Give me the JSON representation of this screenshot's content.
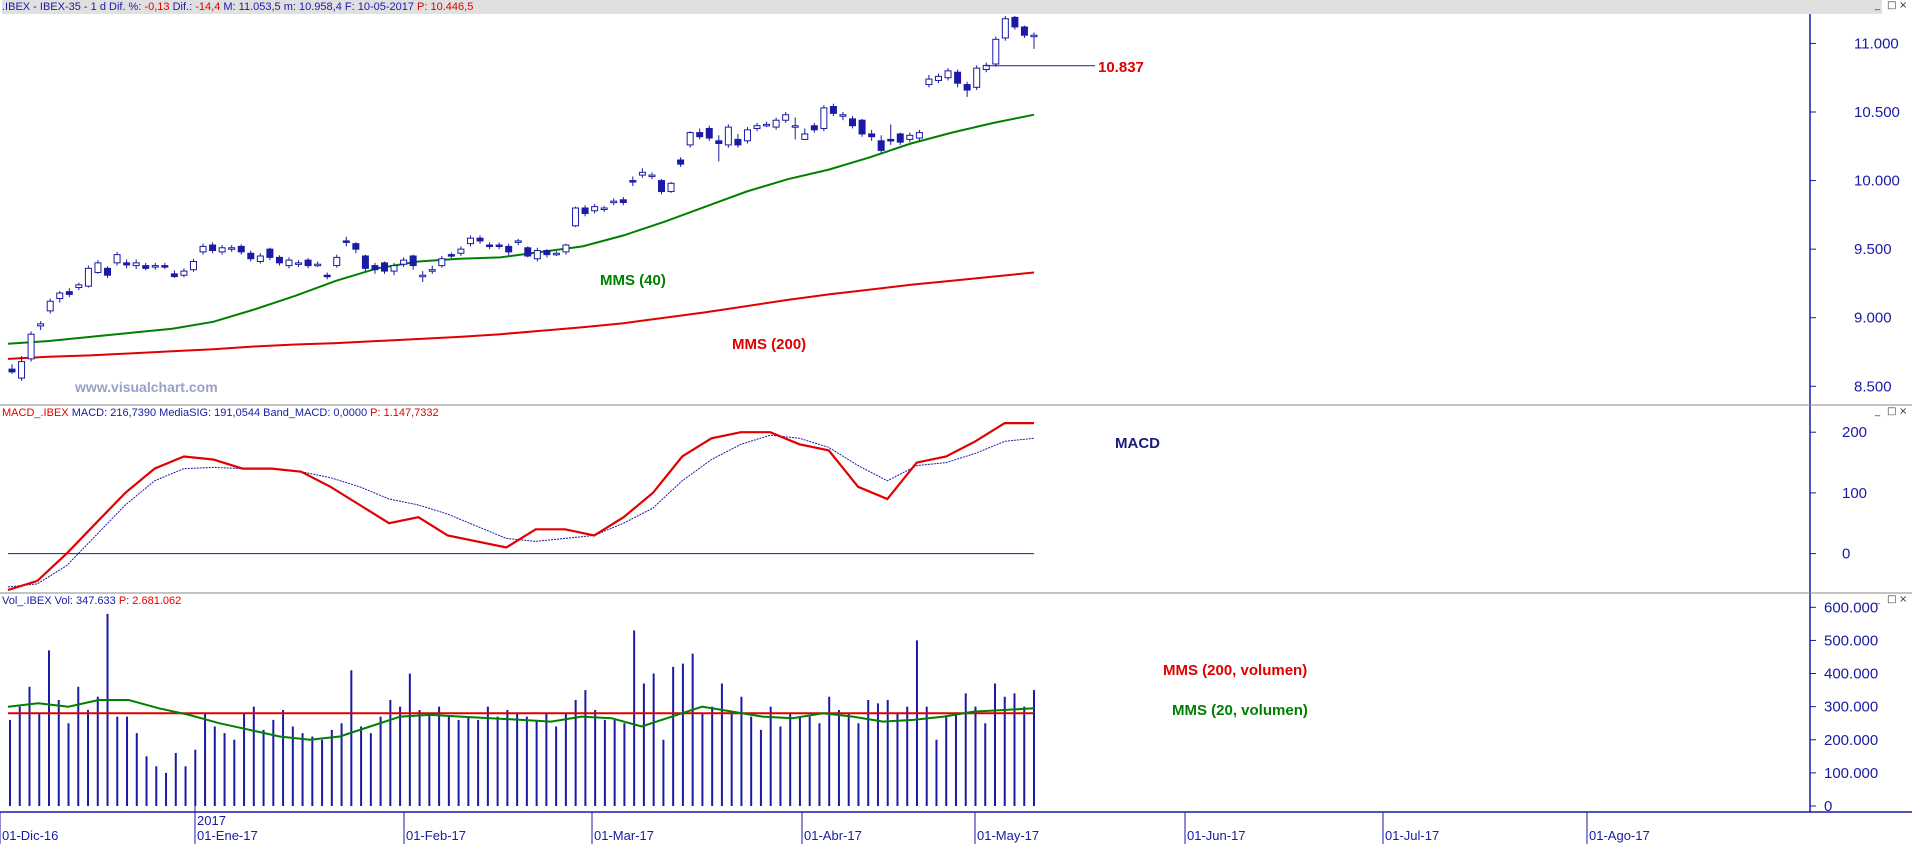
{
  "panels": {
    "price_header": {
      "symbol": ".IBEX - IBEX-35 -  1 d",
      "dif_pct_label": "Dif. %:",
      "dif_pct": "-0,13",
      "dif_label": "Dif.:",
      "dif": "-14,4",
      "m_label": "M: 11.053,5",
      "min_label": "m: 10.958,4",
      "date_label": "F: 10-05-2017",
      "p_label": "P:",
      "p": "10.446,5"
    },
    "macd_header": {
      "name": "MACD_.IBEX",
      "macd": "MACD: 216,7390",
      "signal": "MediaSIG: 191,0544",
      "band": "Band_MACD: 0,0000",
      "p": "P: 1.147,7332"
    },
    "vol_header": {
      "name": "Vol_.IBEX",
      "vol": "Vol: 347.633",
      "p": "P: 2.681.062"
    },
    "window_buttons": [
      "_",
      "□",
      "×"
    ]
  },
  "colors": {
    "candle": "#1a1aa6",
    "sma40": "#008000",
    "sma200": "#e00000",
    "macd": "#e00000",
    "signal": "#1a1aa6",
    "volume": "#1a1aa6",
    "axis": "#1a1aa6",
    "watermark": "#9aa0c8"
  },
  "chart_data": [
    {
      "type": "candlestick",
      "title": "",
      "watermark": "www.visualchart.com",
      "y_ticks": [
        "8.500",
        "9.000",
        "9.500",
        "10.000",
        "10.500",
        "11.000"
      ],
      "ylim": [
        8400,
        11200
      ],
      "annotations": {
        "level": "10.837",
        "sma40_label": "MMS (40)",
        "sma200_label": "MMS (200)"
      },
      "candles": [
        [
          8625,
          8605,
          8660,
          8590
        ],
        [
          8560,
          8680,
          8720,
          8540
        ],
        [
          8700,
          8880,
          8900,
          8680
        ],
        [
          8940,
          8955,
          8975,
          8910
        ],
        [
          9050,
          9120,
          9140,
          9030
        ],
        [
          9140,
          9180,
          9195,
          9110
        ],
        [
          9190,
          9170,
          9215,
          9150
        ],
        [
          9220,
          9240,
          9255,
          9200
        ],
        [
          9230,
          9360,
          9380,
          9220
        ],
        [
          9330,
          9400,
          9420,
          9320
        ],
        [
          9360,
          9310,
          9375,
          9290
        ],
        [
          9400,
          9460,
          9480,
          9380
        ],
        [
          9400,
          9385,
          9425,
          9360
        ],
        [
          9380,
          9400,
          9425,
          9355
        ],
        [
          9380,
          9360,
          9400,
          9345
        ],
        [
          9370,
          9380,
          9400,
          9350
        ],
        [
          9380,
          9370,
          9400,
          9355
        ],
        [
          9320,
          9300,
          9345,
          9290
        ],
        [
          9310,
          9340,
          9360,
          9295
        ],
        [
          9350,
          9410,
          9430,
          9335
        ],
        [
          9480,
          9520,
          9540,
          9460
        ],
        [
          9530,
          9490,
          9550,
          9470
        ],
        [
          9480,
          9510,
          9530,
          9460
        ],
        [
          9500,
          9510,
          9530,
          9480
        ],
        [
          9520,
          9480,
          9535,
          9460
        ],
        [
          9470,
          9430,
          9490,
          9410
        ],
        [
          9410,
          9450,
          9470,
          9395
        ],
        [
          9500,
          9440,
          9510,
          9420
        ],
        [
          9440,
          9400,
          9455,
          9380
        ],
        [
          9380,
          9420,
          9440,
          9360
        ],
        [
          9390,
          9400,
          9420,
          9370
        ],
        [
          9420,
          9380,
          9435,
          9360
        ],
        [
          9390,
          9390,
          9410,
          9370
        ],
        [
          9310,
          9300,
          9330,
          9280
        ],
        [
          9380,
          9440,
          9460,
          9365
        ],
        [
          9560,
          9550,
          9590,
          9520
        ],
        [
          9540,
          9500,
          9550,
          9470
        ],
        [
          9450,
          9360,
          9460,
          9340
        ],
        [
          9380,
          9350,
          9400,
          9320
        ],
        [
          9400,
          9340,
          9410,
          9320
        ],
        [
          9340,
          9380,
          9400,
          9310
        ],
        [
          9390,
          9420,
          9440,
          9370
        ],
        [
          9450,
          9380,
          9460,
          9350
        ],
        [
          9300,
          9310,
          9340,
          9260
        ],
        [
          9340,
          9350,
          9380,
          9320
        ],
        [
          9380,
          9430,
          9450,
          9365
        ],
        [
          9460,
          9450,
          9475,
          9435
        ],
        [
          9470,
          9500,
          9520,
          9450
        ],
        [
          9540,
          9580,
          9600,
          9520
        ],
        [
          9580,
          9560,
          9600,
          9540
        ],
        [
          9530,
          9520,
          9550,
          9500
        ],
        [
          9530,
          9520,
          9550,
          9500
        ],
        [
          9520,
          9480,
          9540,
          9455
        ],
        [
          9560,
          9560,
          9575,
          9530
        ],
        [
          9510,
          9450,
          9520,
          9440
        ],
        [
          9430,
          9490,
          9510,
          9410
        ],
        [
          9490,
          9460,
          9500,
          9440
        ],
        [
          9470,
          9470,
          9485,
          9450
        ],
        [
          9480,
          9530,
          9540,
          9460
        ],
        [
          9670,
          9800,
          9810,
          9660
        ],
        [
          9800,
          9760,
          9820,
          9740
        ],
        [
          9780,
          9810,
          9830,
          9760
        ],
        [
          9790,
          9800,
          9815,
          9770
        ],
        [
          9840,
          9850,
          9870,
          9820
        ],
        [
          9860,
          9840,
          9880,
          9820
        ],
        [
          10000,
          9990,
          10030,
          9960
        ],
        [
          10040,
          10060,
          10090,
          10020
        ],
        [
          10030,
          10040,
          10060,
          10010
        ],
        [
          10000,
          9920,
          10010,
          9900
        ],
        [
          9920,
          9980,
          9990,
          9910
        ],
        [
          10150,
          10120,
          10170,
          10100
        ],
        [
          10260,
          10350,
          10360,
          10240
        ],
        [
          10350,
          10320,
          10380,
          10300
        ],
        [
          10380,
          10310,
          10400,
          10290
        ],
        [
          10290,
          10270,
          10330,
          10140
        ],
        [
          10260,
          10390,
          10410,
          10240
        ],
        [
          10300,
          10260,
          10340,
          10240
        ],
        [
          10290,
          10370,
          10390,
          10270
        ],
        [
          10380,
          10400,
          10420,
          10360
        ],
        [
          10410,
          10410,
          10430,
          10390
        ],
        [
          10390,
          10440,
          10460,
          10370
        ],
        [
          10440,
          10480,
          10500,
          10420
        ],
        [
          10400,
          10400,
          10460,
          10300
        ],
        [
          10300,
          10340,
          10380,
          10300
        ],
        [
          10400,
          10370,
          10420,
          10350
        ],
        [
          10380,
          10530,
          10550,
          10360
        ],
        [
          10540,
          10490,
          10560,
          10470
        ],
        [
          10480,
          10480,
          10500,
          10440
        ],
        [
          10450,
          10400,
          10470,
          10380
        ],
        [
          10440,
          10340,
          10450,
          10320
        ],
        [
          10340,
          10320,
          10370,
          10290
        ],
        [
          10290,
          10220,
          10330,
          10200
        ],
        [
          10300,
          10290,
          10410,
          10260
        ],
        [
          10340,
          10280,
          10350,
          10260
        ],
        [
          10300,
          10330,
          10350,
          10280
        ],
        [
          10310,
          10350,
          10370,
          10290
        ],
        [
          10700,
          10740,
          10770,
          10680
        ],
        [
          10730,
          10760,
          10780,
          10710
        ],
        [
          10750,
          10800,
          10820,
          10730
        ],
        [
          10790,
          10710,
          10810,
          10680
        ],
        [
          10700,
          10660,
          10720,
          10610
        ],
        [
          10680,
          10820,
          10840,
          10660
        ],
        [
          10810,
          10840,
          10860,
          10790
        ],
        [
          10850,
          11030,
          11050,
          10830
        ],
        [
          11040,
          11180,
          11200,
          11020
        ],
        [
          11190,
          11120,
          11200,
          11100
        ],
        [
          11120,
          11060,
          11130,
          11040
        ],
        [
          11060,
          11060,
          11080,
          10960
        ]
      ],
      "sma40": [
        8810,
        8830,
        8860,
        8890,
        8920,
        8970,
        9060,
        9160,
        9270,
        9360,
        9410,
        9430,
        9440,
        9480,
        9520,
        9600,
        9700,
        9810,
        9920,
        10010,
        10080,
        10170,
        10270,
        10350,
        10420,
        10480
      ],
      "sma200": [
        8700,
        8715,
        8725,
        8740,
        8755,
        8770,
        8790,
        8805,
        8815,
        8830,
        8845,
        8860,
        8880,
        8905,
        8930,
        8960,
        9000,
        9040,
        9085,
        9130,
        9170,
        9205,
        9240,
        9270,
        9300,
        9330
      ]
    },
    {
      "type": "line",
      "title": "",
      "label": "MACD",
      "y_ticks": [
        "0",
        "100",
        "200"
      ],
      "ylim": [
        -60,
        230
      ],
      "series": [
        {
          "values": [
            -60,
            -45,
            0,
            50,
            100,
            140,
            160,
            155,
            140,
            140,
            135,
            110,
            80,
            50,
            60,
            30,
            20,
            10,
            40,
            40,
            30,
            60,
            100,
            160,
            190,
            200,
            200,
            180,
            170,
            110,
            90,
            150,
            160,
            185,
            215,
            215
          ]
        },
        {
          "values": [
            -55,
            -50,
            -20,
            30,
            80,
            120,
            140,
            142,
            140,
            140,
            135,
            125,
            110,
            90,
            80,
            65,
            45,
            25,
            20,
            25,
            30,
            50,
            75,
            120,
            155,
            180,
            195,
            190,
            175,
            145,
            120,
            145,
            150,
            165,
            185,
            190
          ]
        }
      ],
      "baseline": 0
    },
    {
      "type": "bar",
      "title": "",
      "y_ticks": [
        "0",
        "100.000",
        "200.000",
        "300.000",
        "400.000",
        "500.000",
        "600.000"
      ],
      "ylim": [
        0,
        610000
      ],
      "annotations": {
        "sma200_label": "MMS (200, volumen)",
        "sma20_label": "MMS (20, volumen)",
        "year": "2017"
      },
      "values": [
        260000,
        300000,
        360000,
        280000,
        470000,
        320000,
        250000,
        360000,
        290000,
        330000,
        580000,
        270000,
        270000,
        220000,
        150000,
        120000,
        100000,
        160000,
        120000,
        170000,
        280000,
        240000,
        220000,
        200000,
        280000,
        300000,
        230000,
        260000,
        290000,
        240000,
        220000,
        210000,
        200000,
        230000,
        250000,
        410000,
        240000,
        220000,
        270000,
        320000,
        300000,
        400000,
        290000,
        280000,
        300000,
        270000,
        260000,
        270000,
        260000,
        300000,
        270000,
        290000,
        280000,
        270000,
        260000,
        280000,
        240000,
        280000,
        320000,
        350000,
        290000,
        260000,
        260000,
        250000,
        530000,
        370000,
        400000,
        200000,
        420000,
        430000,
        460000,
        280000,
        300000,
        370000,
        280000,
        330000,
        270000,
        230000,
        300000,
        240000,
        280000,
        270000,
        270000,
        250000,
        330000,
        290000,
        280000,
        250000,
        320000,
        310000,
        320000,
        280000,
        300000,
        500000,
        300000,
        200000,
        270000,
        280000,
        340000,
        300000,
        250000,
        370000,
        330000,
        340000,
        300000,
        350000
      ],
      "sma200": 280000,
      "sma20": [
        300000,
        310000,
        300000,
        320000,
        320000,
        295000,
        275000,
        250000,
        230000,
        210000,
        200000,
        210000,
        240000,
        270000,
        275000,
        270000,
        265000,
        260000,
        255000,
        270000,
        265000,
        240000,
        270000,
        300000,
        285000,
        270000,
        265000,
        280000,
        270000,
        255000,
        260000,
        270000,
        285000,
        290000,
        295000
      ]
    }
  ],
  "x_axis": [
    "01-Dic-16",
    "01-Ene-17",
    "01-Feb-17",
    "01-Mar-17",
    "01-Abr-17",
    "01-May-17",
    "01-Jun-17",
    "01-Jul-17",
    "01-Ago-17"
  ]
}
